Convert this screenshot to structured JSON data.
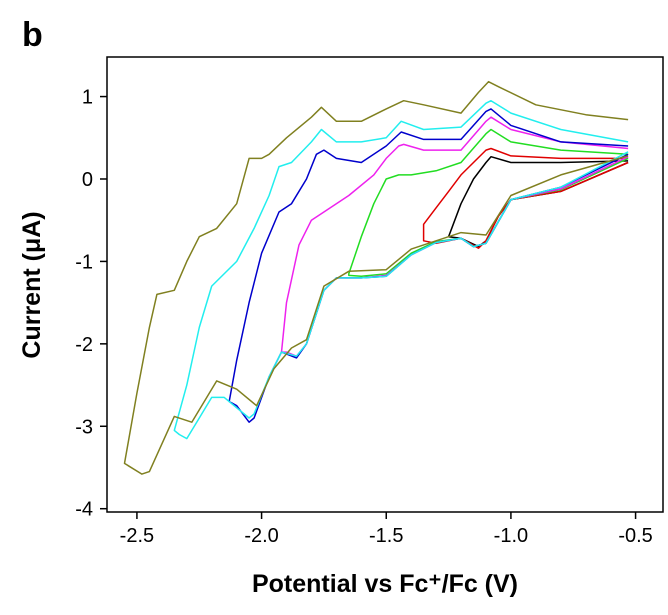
{
  "chart_data": {
    "type": "line",
    "panel_label": "b",
    "xlabel": "Potential vs Fc⁺/Fc (V)",
    "ylabel": "Current (μA)",
    "xlim": [
      -2.62,
      -0.39
    ],
    "ylim": [
      -4.04,
      1.48
    ],
    "xticks": [
      -2.5,
      {
        "value": -2,
        "label": "-2.0"
      },
      -1.5,
      {
        "value": -1,
        "label": "-1.0"
      },
      -0.5
    ],
    "yticks": [
      1,
      0,
      -1,
      -2,
      -3,
      -4
    ],
    "series": [
      {
        "color": "#000000",
        "x": [
          -0.53,
          -0.8,
          -1.0,
          -1.05,
          -1.1,
          -1.13,
          -1.2,
          -1.25,
          -1.2,
          -1.15,
          -1.1,
          -1.08,
          -1.0,
          -0.8,
          -0.53
        ],
        "values": [
          0.2,
          -0.15,
          -0.25,
          -0.45,
          -0.75,
          -0.82,
          -0.72,
          -0.7,
          -0.3,
          0.0,
          0.2,
          0.27,
          0.2,
          0.2,
          0.22
        ]
      },
      {
        "color": "#e00000",
        "x": [
          -0.53,
          -0.8,
          -1.0,
          -1.05,
          -1.1,
          -1.13,
          -1.2,
          -1.3,
          -1.35,
          -1.35,
          -1.3,
          -1.25,
          -1.2,
          -1.15,
          -1.1,
          -1.08,
          -1.0,
          -0.8,
          -0.53
        ],
        "values": [
          0.2,
          -0.15,
          -0.25,
          -0.45,
          -0.75,
          -0.84,
          -0.72,
          -0.78,
          -0.75,
          -0.55,
          -0.35,
          -0.15,
          0.05,
          0.2,
          0.35,
          0.37,
          0.28,
          0.25,
          0.25
        ]
      },
      {
        "color": "#22dd22",
        "x": [
          -0.53,
          -0.8,
          -1.0,
          -1.1,
          -1.15,
          -1.2,
          -1.3,
          -1.4,
          -1.5,
          -1.6,
          -1.65,
          -1.65,
          -1.6,
          -1.55,
          -1.5,
          -1.45,
          -1.4,
          -1.3,
          -1.2,
          -1.1,
          -1.08,
          -1.0,
          -0.8,
          -0.53
        ],
        "values": [
          0.25,
          -0.13,
          -0.25,
          -0.78,
          -0.82,
          -0.72,
          -0.76,
          -0.9,
          -1.15,
          -1.18,
          -1.17,
          -1.15,
          -0.7,
          -0.3,
          0.0,
          0.05,
          0.05,
          0.1,
          0.2,
          0.55,
          0.6,
          0.45,
          0.35,
          0.3
        ]
      },
      {
        "color": "#ee22ee",
        "x": [
          -0.53,
          -0.8,
          -1.0,
          -1.1,
          -1.15,
          -1.2,
          -1.3,
          -1.4,
          -1.5,
          -1.6,
          -1.7,
          -1.75,
          -1.82,
          -1.86,
          -1.9,
          -1.92,
          -1.9,
          -1.85,
          -1.8,
          -1.75,
          -1.65,
          -1.55,
          -1.5,
          -1.45,
          -1.43,
          -1.35,
          -1.2,
          -1.1,
          -1.08,
          -1.0,
          -0.8,
          -0.53
        ],
        "values": [
          0.27,
          -0.12,
          -0.25,
          -0.78,
          -0.82,
          -0.72,
          -0.77,
          -0.92,
          -1.17,
          -1.2,
          -1.2,
          -1.35,
          -2.0,
          -2.15,
          -2.1,
          -2.1,
          -1.5,
          -0.8,
          -0.5,
          -0.4,
          -0.2,
          0.05,
          0.25,
          0.4,
          0.42,
          0.35,
          0.35,
          0.7,
          0.75,
          0.6,
          0.45,
          0.37
        ]
      },
      {
        "color": "#0000cc",
        "x": [
          -0.53,
          -0.8,
          -1.0,
          -1.1,
          -1.15,
          -1.2,
          -1.3,
          -1.4,
          -1.5,
          -1.6,
          -1.7,
          -1.75,
          -1.82,
          -1.86,
          -1.92,
          -1.97,
          -2.03,
          -2.05,
          -2.1,
          -2.13,
          -2.1,
          -2.05,
          -2.0,
          -1.93,
          -1.88,
          -1.82,
          -1.78,
          -1.75,
          -1.7,
          -1.6,
          -1.5,
          -1.44,
          -1.35,
          -1.2,
          -1.1,
          -1.08,
          -1.0,
          -0.8,
          -0.53
        ],
        "values": [
          0.3,
          -0.1,
          -0.25,
          -0.78,
          -0.82,
          -0.72,
          -0.77,
          -0.92,
          -1.18,
          -1.2,
          -1.2,
          -1.35,
          -2.0,
          -2.17,
          -2.1,
          -2.4,
          -2.9,
          -2.95,
          -2.75,
          -2.7,
          -2.2,
          -1.5,
          -0.9,
          -0.4,
          -0.3,
          0.0,
          0.3,
          0.35,
          0.25,
          0.2,
          0.4,
          0.57,
          0.48,
          0.48,
          0.82,
          0.85,
          0.65,
          0.45,
          0.4
        ]
      },
      {
        "color": "#22eeee",
        "x": [
          -0.53,
          -0.8,
          -1.0,
          -1.1,
          -1.15,
          -1.2,
          -1.3,
          -1.4,
          -1.5,
          -1.6,
          -1.7,
          -1.75,
          -1.82,
          -1.86,
          -1.92,
          -1.97,
          -2.03,
          -2.05,
          -2.15,
          -2.2,
          -2.25,
          -2.3,
          -2.33,
          -2.35,
          -2.3,
          -2.25,
          -2.2,
          -2.1,
          -2.03,
          -1.97,
          -1.93,
          -1.88,
          -1.8,
          -1.76,
          -1.7,
          -1.6,
          -1.5,
          -1.44,
          -1.35,
          -1.2,
          -1.1,
          -1.08,
          -1.0,
          -0.8,
          -0.53
        ],
        "values": [
          0.33,
          -0.1,
          -0.25,
          -0.78,
          -0.82,
          -0.72,
          -0.77,
          -0.92,
          -1.18,
          -1.2,
          -1.2,
          -1.35,
          -2.0,
          -2.15,
          -2.1,
          -2.4,
          -2.85,
          -2.9,
          -2.65,
          -2.65,
          -2.9,
          -3.15,
          -3.1,
          -3.05,
          -2.5,
          -1.8,
          -1.3,
          -1.0,
          -0.6,
          -0.2,
          0.15,
          0.2,
          0.45,
          0.6,
          0.45,
          0.45,
          0.5,
          0.7,
          0.6,
          0.63,
          0.92,
          0.95,
          0.8,
          0.6,
          0.45
        ]
      },
      {
        "color": "#808020",
        "x": [
          -0.53,
          -0.8,
          -1.0,
          -1.1,
          -1.2,
          -1.3,
          -1.4,
          -1.5,
          -1.65,
          -1.75,
          -1.82,
          -1.88,
          -1.95,
          -2.02,
          -2.1,
          -2.18,
          -2.28,
          -2.35,
          -2.45,
          -2.48,
          -2.55,
          -2.5,
          -2.45,
          -2.42,
          -2.35,
          -2.3,
          -2.25,
          -2.18,
          -2.1,
          -2.05,
          -2.0,
          -1.97,
          -1.9,
          -1.8,
          -1.76,
          -1.7,
          -1.6,
          -1.5,
          -1.43,
          -1.35,
          -1.2,
          -1.13,
          -1.09,
          -1.05,
          -0.9,
          -0.7,
          -0.53
        ],
        "values": [
          0.28,
          0.05,
          -0.2,
          -0.68,
          -0.65,
          -0.75,
          -0.85,
          -1.1,
          -1.12,
          -1.3,
          -1.95,
          -2.05,
          -2.3,
          -2.75,
          -2.55,
          -2.45,
          -2.95,
          -2.88,
          -3.55,
          -3.58,
          -3.45,
          -2.6,
          -1.8,
          -1.4,
          -1.35,
          -1.0,
          -0.7,
          -0.6,
          -0.3,
          0.25,
          0.25,
          0.3,
          0.5,
          0.75,
          0.87,
          0.7,
          0.7,
          0.85,
          0.95,
          0.9,
          0.8,
          1.05,
          1.18,
          1.12,
          0.9,
          0.78,
          0.72
        ]
      }
    ]
  }
}
